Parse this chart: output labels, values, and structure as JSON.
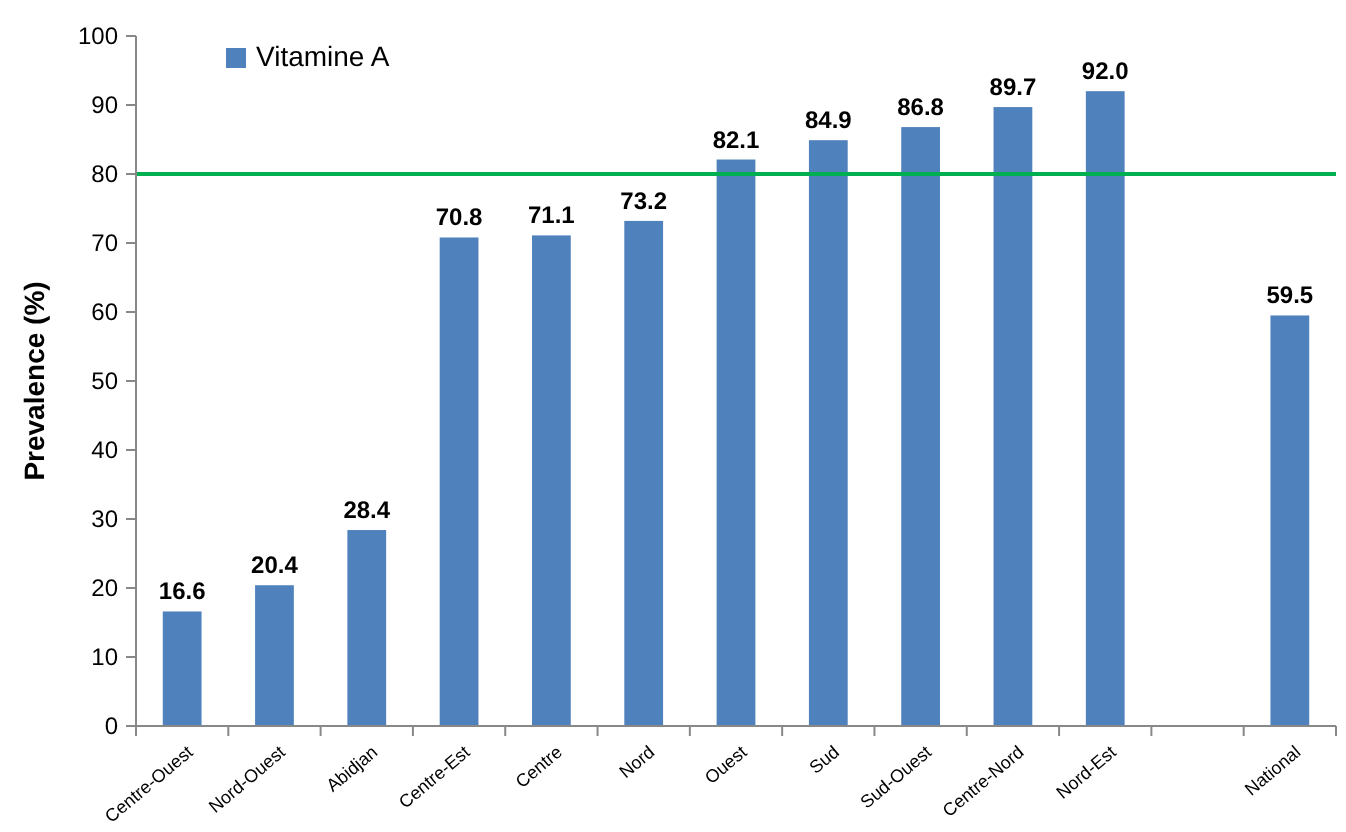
{
  "chart_data": {
    "type": "bar",
    "ylabel": "Prevalence (%)",
    "categories": [
      "Centre-Ouest",
      "Nord-Ouest",
      "Abidjan",
      "Centre-Est",
      "Centre",
      "Nord",
      "Ouest",
      "Sud",
      "Sud-Ouest",
      "Centre-Nord",
      "Nord-Est",
      null,
      "National"
    ],
    "series": [
      {
        "name": "Vitamine A",
        "color": "#4f81bd",
        "values": [
          16.6,
          20.4,
          28.4,
          70.8,
          71.1,
          73.2,
          82.1,
          84.9,
          86.8,
          89.7,
          92.0,
          null,
          59.5
        ]
      }
    ],
    "value_labels": [
      "16.6",
      "20.4",
      "28.4",
      "70.8",
      "71.1",
      "73.2",
      "82.1",
      "84.9",
      "86.8",
      "89.7",
      "92.0",
      null,
      "59.5"
    ],
    "ylim": [
      0,
      100
    ],
    "yticks": [
      0,
      10,
      20,
      30,
      40,
      50,
      60,
      70,
      80,
      90,
      100
    ],
    "ref_lines": [
      {
        "axis": "y",
        "value": 80,
        "color": "#00b050"
      }
    ],
    "legend": "top left"
  }
}
